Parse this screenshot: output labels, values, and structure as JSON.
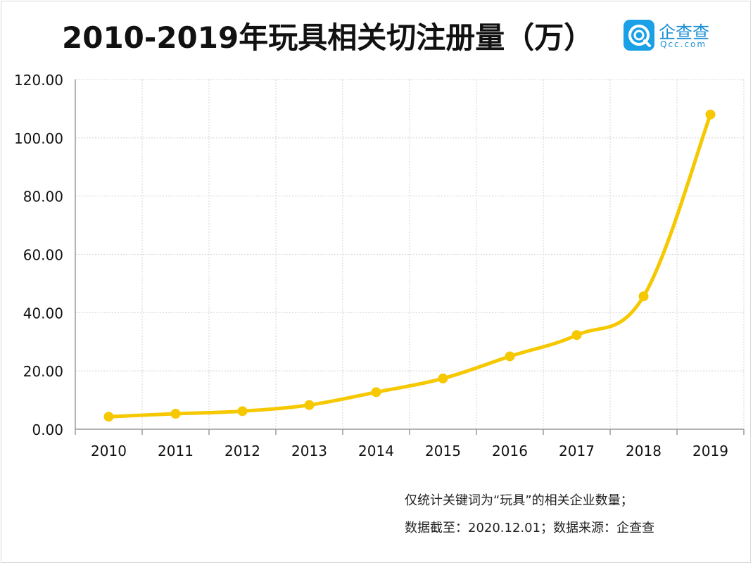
{
  "title": "2010-2019年玩具相关切注册量（万）",
  "logo": {
    "name": "企查查",
    "domain": "Qcc.com"
  },
  "notes": {
    "scope": "仅统计关键词为“玩具”的相关企业数量；",
    "source": "数据截至：2020.12.01；数据来源：企查查"
  },
  "colors": {
    "line": "#f5c800",
    "grid": "#d4d4d4",
    "axis": "#9a9a9a",
    "text": "#111111"
  },
  "chart_data": {
    "type": "line",
    "title": "2010-2019年玩具相关切注册量（万）",
    "xlabel": "",
    "ylabel": "",
    "ylim": [
      0,
      120
    ],
    "yticks": [
      "0.00",
      "20.00",
      "40.00",
      "60.00",
      "80.00",
      "100.00",
      "120.00"
    ],
    "categories": [
      "2010",
      "2011",
      "2012",
      "2013",
      "2014",
      "2015",
      "2016",
      "2017",
      "2018",
      "2019"
    ],
    "series": [
      {
        "name": "注册量",
        "values": [
          4.3,
          5.3,
          6.2,
          8.3,
          12.7,
          17.4,
          25.0,
          32.3,
          45.6,
          108.0
        ]
      }
    ],
    "grid": true,
    "legend": "none"
  }
}
